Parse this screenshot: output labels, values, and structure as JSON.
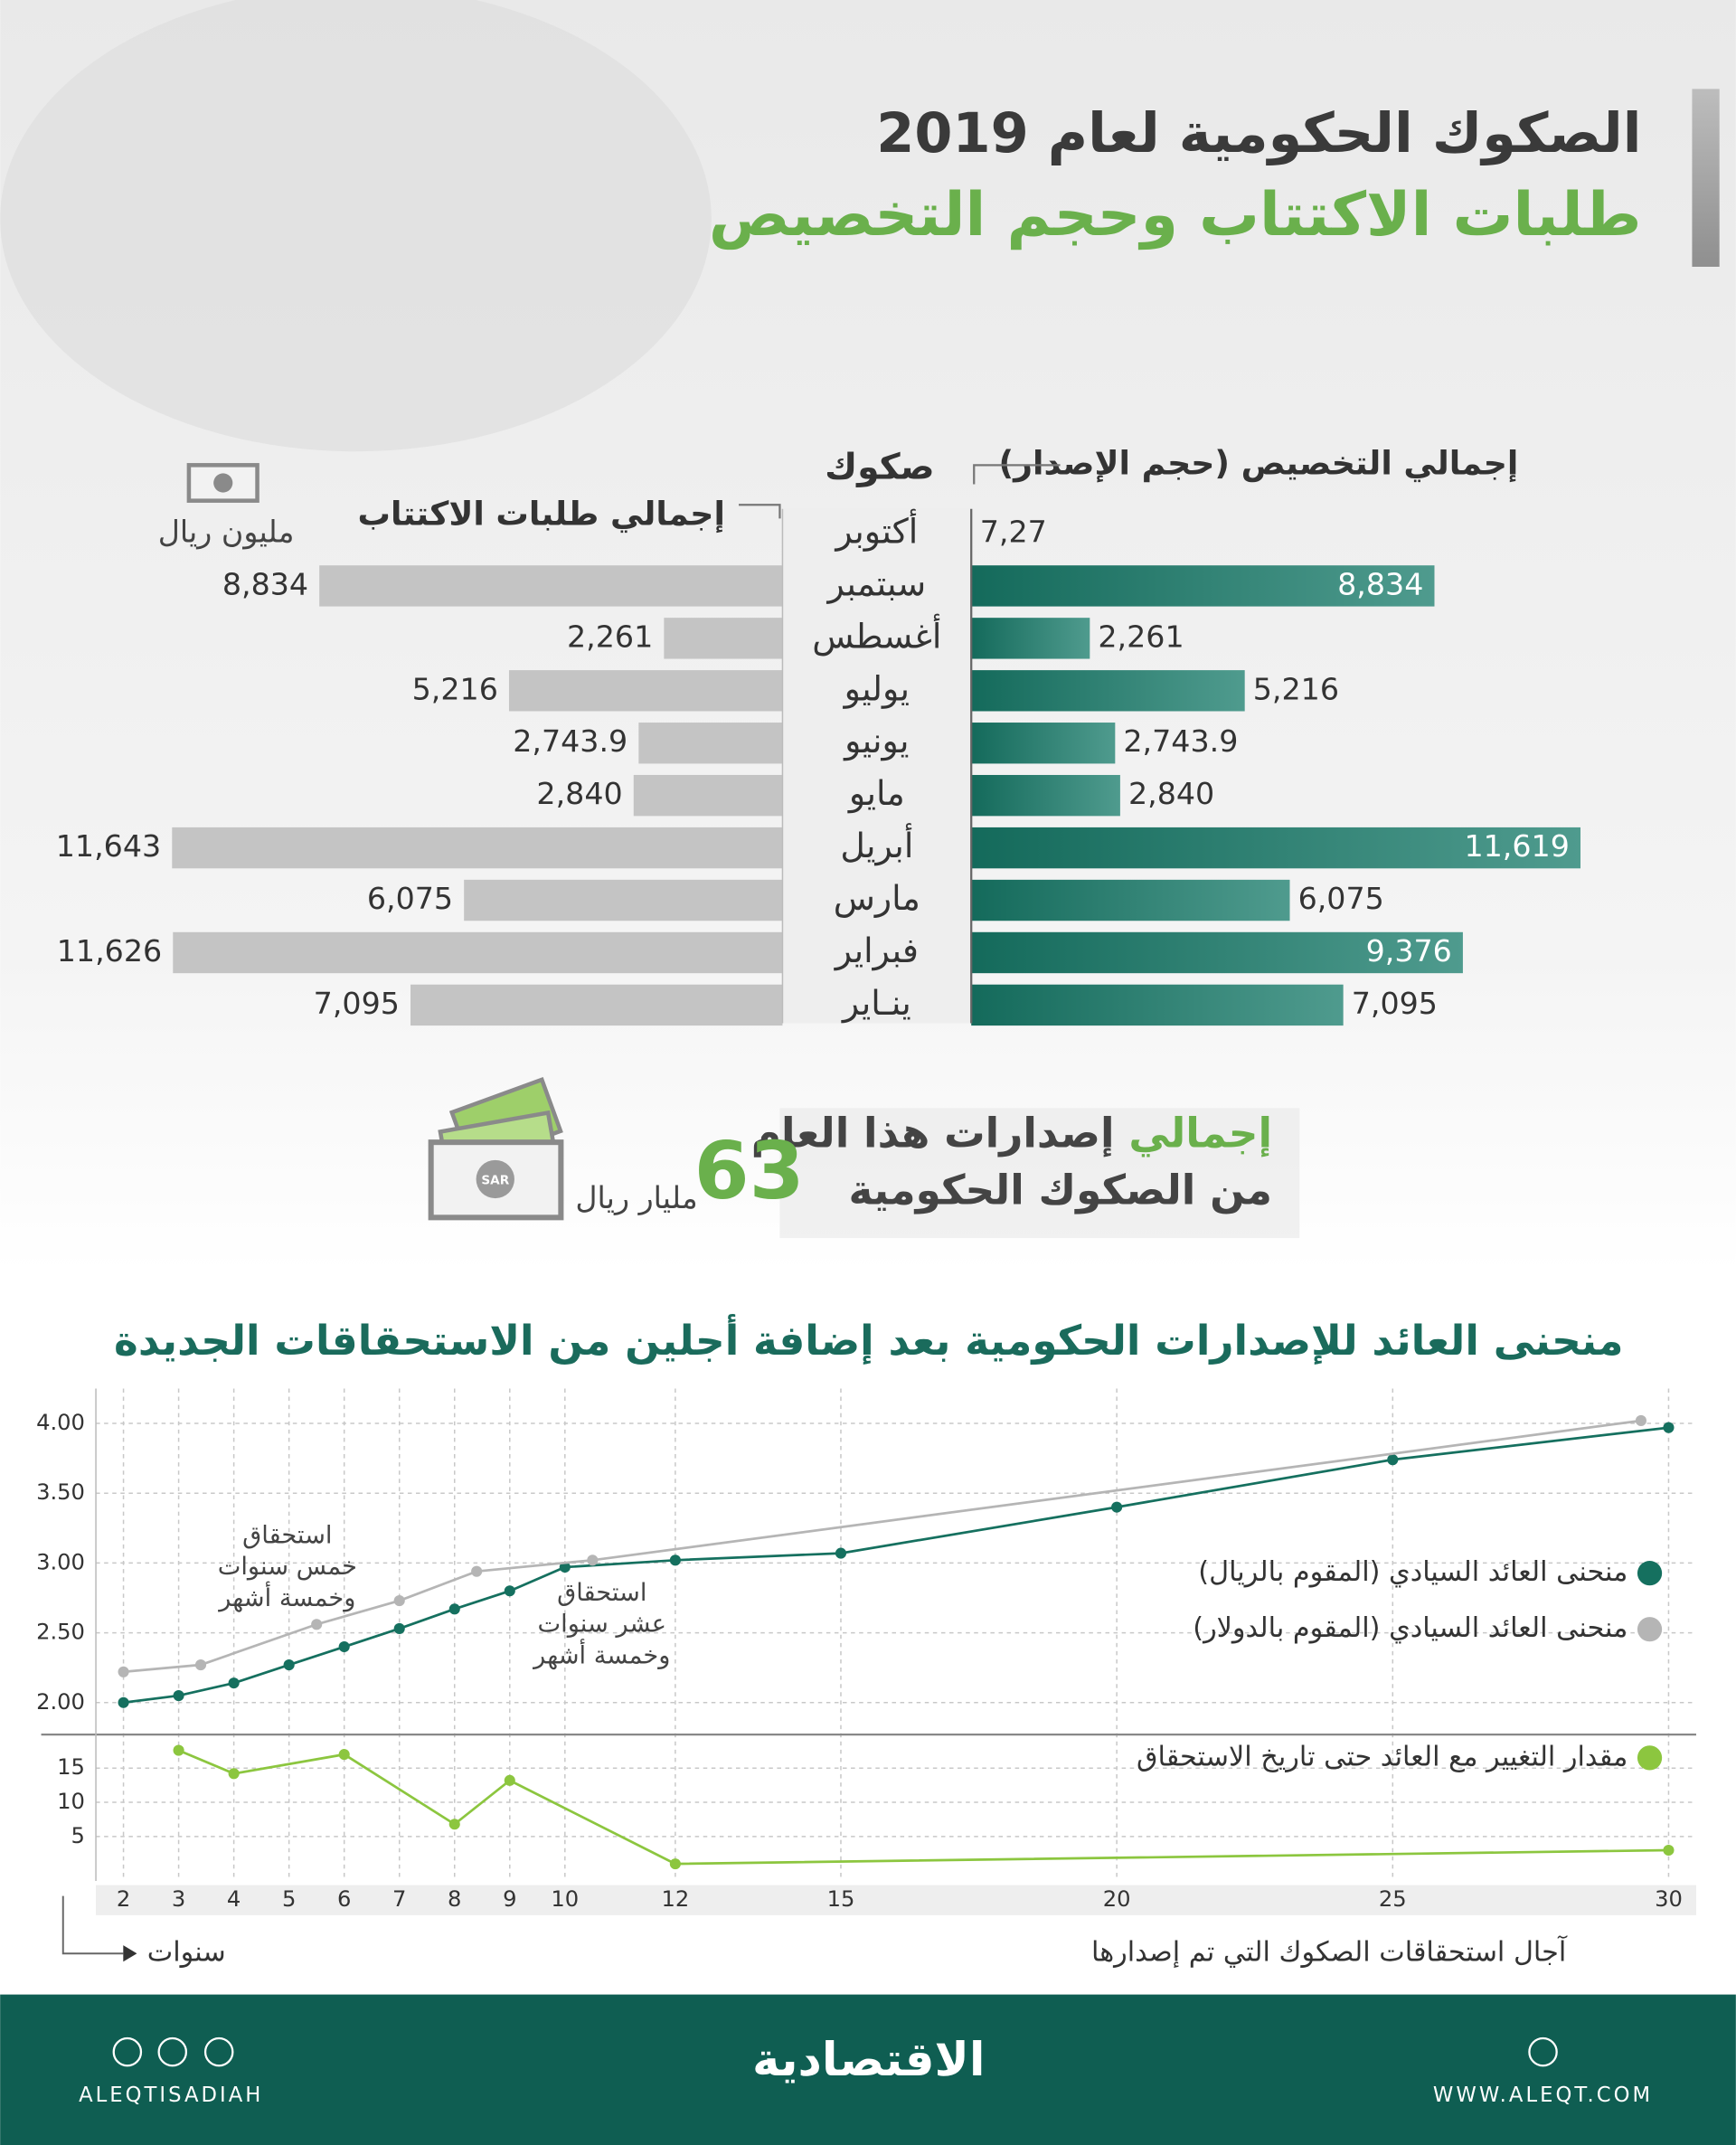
{
  "header": {
    "title": "الصكوك الحكومية لعام 2019",
    "subtitle": "طلبات الاكتتاب وحجم التخصيص"
  },
  "chart_data": [
    {
      "type": "butterfly-bar",
      "category_label": "صكوك",
      "unit": "مليون ريال",
      "categories": [
        "أكتوبر",
        "سبتمبر",
        "أغسطس",
        "يوليو",
        "يونيو",
        "مايو",
        "أبريل",
        "مارس",
        "فبراير",
        "ينـاير"
      ],
      "xlim": [
        0,
        12000
      ],
      "series": [
        {
          "name": "إجمالي طلبات الاكتتاب",
          "color": "#c4c4c4",
          "values": [
            null,
            8834,
            2261,
            5216,
            2743.9,
            2840,
            11643,
            6075,
            11626,
            7095
          ],
          "value_labels": [
            null,
            "8,834",
            "2,261",
            "5,216",
            "2,743.9",
            "2,840",
            "11,643",
            "6,075",
            "11,626",
            "7,095"
          ]
        },
        {
          "name": "إجمالي التخصيص (حجم الإصدار)",
          "color": "#1a7a6a",
          "values": [
            7.27,
            8834,
            2261,
            5216,
            2743.9,
            2840,
            11619,
            6075,
            9376,
            7095
          ],
          "value_labels": [
            "7,27",
            "8,834",
            "2,261",
            "5,216",
            "2,743.9",
            "2,840",
            "11,619",
            "6,075",
            "9,376",
            "7,095"
          ]
        }
      ]
    },
    {
      "type": "line",
      "title": "منحنى العائد للإصدارات الحكومية بعد إضافة أجلين من الاستحقاقات الجديدة",
      "xlabel": "آجال استحقاقات الصكوك التي تم إصدارها",
      "xunit": "سنوات",
      "xlim": [
        1.5,
        30.5
      ],
      "xticks": [
        2,
        3,
        4,
        5,
        6,
        7,
        8,
        9,
        10,
        12,
        15,
        20,
        25,
        30
      ],
      "ylim": [
        1.8,
        4.25
      ],
      "yticks": [
        {
          "value": 2,
          "label": "2.00"
        },
        {
          "value": 2.5,
          "label": "2.50"
        },
        {
          "value": 3,
          "label": "3.00"
        },
        {
          "value": 3.5,
          "label": "3.50"
        },
        {
          "value": 4,
          "label": "4.00"
        }
      ],
      "y2lim": [
        -1.5,
        19.5
      ],
      "y2ticks": [
        5,
        10,
        15
      ],
      "grid": true,
      "series": [
        {
          "name": "منحنى العائد السيادي (المقوم بالريال)",
          "color": "#15705f",
          "x": [
            2,
            3,
            4,
            5,
            6,
            7,
            8,
            9,
            10,
            12,
            15,
            20,
            25,
            30
          ],
          "values": [
            2.0,
            2.05,
            2.14,
            2.27,
            2.4,
            2.53,
            2.67,
            2.8,
            2.97,
            3.02,
            3.07,
            3.4,
            3.74,
            3.97
          ]
        },
        {
          "name": "منحنى العائد السيادي (المقوم بالدولار)",
          "color": "#b5b5b5",
          "x": [
            2,
            3.4,
            5.5,
            7,
            8.4,
            10.5,
            29.5
          ],
          "values": [
            2.22,
            2.27,
            2.56,
            2.73,
            2.94,
            3.02,
            4.02
          ]
        },
        {
          "name": "مقدار التغيير مع العائد حتى تاريخ الاستحقاق",
          "color": "#8cc63f",
          "axis": "y2",
          "x": [
            3,
            4,
            6,
            8,
            9,
            12,
            30
          ],
          "values": [
            17.6,
            14.2,
            17,
            6.8,
            13.2,
            1,
            3
          ]
        }
      ],
      "annotations": [
        {
          "lines": [
            "استحقاق",
            "خمس سنوات",
            "وخمسة أشهر"
          ]
        },
        {
          "lines": [
            "استحقاق",
            "عشر سنوات",
            "وخمسة أشهر"
          ]
        }
      ]
    }
  ],
  "summary": {
    "highlight": "إجمالي",
    "line1": "إصدارات هذا العام",
    "line2": "من الصكوك الحكومية",
    "value": 63,
    "unit": "مليار ريال",
    "icon_label": "SAR"
  },
  "footer": {
    "logo": "الاقتصادية",
    "handle": "ALEQTISADIAH",
    "website": "WWW.ALEQT.COM"
  }
}
